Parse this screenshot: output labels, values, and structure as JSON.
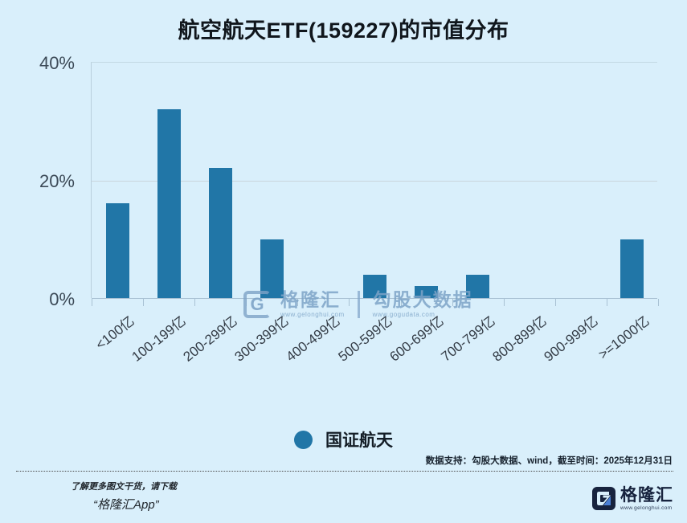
{
  "title": "航空航天ETF(159227)的市值分布",
  "chart_data": {
    "type": "bar",
    "title": "航空航天ETF(159227)的市值分布",
    "categories": [
      "<100亿",
      "100-199亿",
      "200-299亿",
      "300-399亿",
      "400-499亿",
      "500-599亿",
      "600-699亿",
      "700-799亿",
      "800-899亿",
      "900-999亿",
      ">=1000亿"
    ],
    "series": [
      {
        "name": "国证航天",
        "values": [
          16,
          32,
          22,
          10,
          0,
          4,
          2,
          4,
          0,
          0,
          10
        ]
      }
    ],
    "xlabel": "",
    "ylabel": "",
    "ylim": [
      0,
      40
    ],
    "yticks": [
      "0%",
      "20%",
      "40%"
    ],
    "grid": "horizontal",
    "legend_position": "bottom",
    "bar_color": "#2176a7",
    "background_color": "#d9effb"
  },
  "legend": {
    "label": "国证航天"
  },
  "watermark": {
    "g_letter": "G",
    "glh_name": "格隆汇",
    "glh_url": "www.gelonghui.com",
    "ggd_name": "勾股大数据",
    "ggd_url": "www.gogudata.com"
  },
  "footer": {
    "source_note": "数据支持：勾股大数据、wind，截至时间：2025年12月31日",
    "promo_line1": "了解更多图文干货，请下载",
    "promo_line2": "“格隆汇App”",
    "brand_name": "格隆汇",
    "brand_url": "www.gelonghui.com"
  }
}
